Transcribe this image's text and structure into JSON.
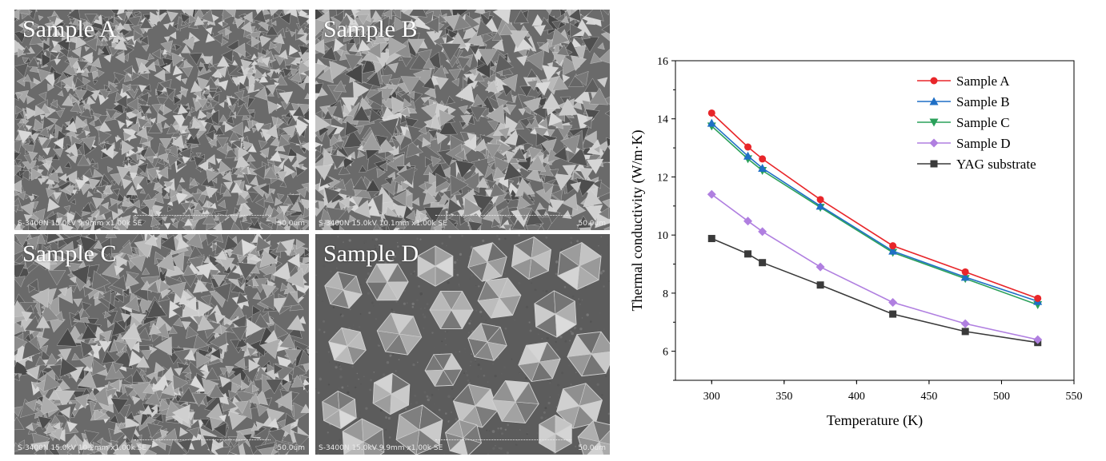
{
  "panels": [
    {
      "label": "Sample A",
      "meta": "S-3400N 15.0kV 9.9mm x1.00k SE",
      "scale": "50.0um",
      "seed": 11,
      "mode": "fine"
    },
    {
      "label": "Sample B",
      "meta": "S-3400N 15.0kV 10.1mm x1.00k SE",
      "scale": "50.0um",
      "seed": 23,
      "mode": "medium"
    },
    {
      "label": "Sample C",
      "meta": "S-3400N 15.0kV 10.2mm x1.00k SE",
      "scale": "50.0um",
      "seed": 37,
      "mode": "medium"
    },
    {
      "label": "Sample D",
      "meta": "S-3400N 15.0kV 9.9mm x1.00k SE",
      "scale": "50.0um",
      "seed": 51,
      "mode": "coarse"
    }
  ],
  "chart_data": {
    "type": "line",
    "xlabel": "Temperature (K)",
    "ylabel": "Thermal conductivity (W/m·K)",
    "xlim": [
      275,
      550
    ],
    "ylim": [
      5,
      16
    ],
    "xticks": [
      300,
      350,
      400,
      450,
      500,
      550
    ],
    "yticks": [
      6,
      8,
      10,
      12,
      14,
      16
    ],
    "x": [
      300,
      325,
      335,
      375,
      425,
      475,
      525
    ],
    "legend_position": "top-right",
    "grid": false,
    "series": [
      {
        "name": "Sample A",
        "color": "#e8262a",
        "marker": "circle",
        "values": [
          14.2,
          13.03,
          12.62,
          11.22,
          9.63,
          8.73,
          7.82
        ]
      },
      {
        "name": "Sample B",
        "color": "#1f6fc5",
        "marker": "triangle-up",
        "values": [
          13.85,
          12.72,
          12.3,
          11.0,
          9.45,
          8.55,
          7.72
        ]
      },
      {
        "name": "Sample C",
        "color": "#2aa05a",
        "marker": "triangle-down",
        "values": [
          13.75,
          12.62,
          12.22,
          10.95,
          9.4,
          8.5,
          7.6
        ]
      },
      {
        "name": "Sample D",
        "color": "#b07fe0",
        "marker": "diamond",
        "values": [
          11.4,
          10.48,
          10.12,
          8.9,
          7.68,
          6.95,
          6.4
        ]
      },
      {
        "name": "YAG substrate",
        "color": "#3a3a3a",
        "marker": "square",
        "values": [
          9.88,
          9.35,
          9.05,
          8.28,
          7.28,
          6.68,
          6.3
        ]
      }
    ]
  }
}
